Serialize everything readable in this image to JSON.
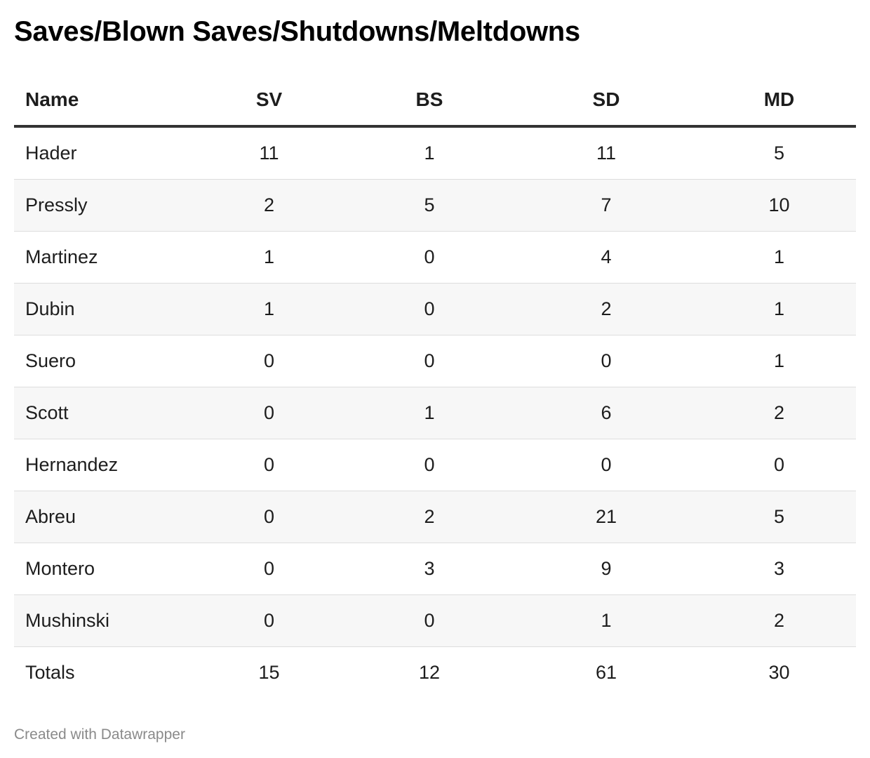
{
  "chart_data": {
    "type": "table",
    "title": "Saves/Blown Saves/Shutdowns/Meltdowns",
    "columns": [
      "Name",
      "SV",
      "BS",
      "SD",
      "MD"
    ],
    "rows": [
      [
        "Hader",
        "11",
        "1",
        "11",
        "5"
      ],
      [
        "Pressly",
        "2",
        "5",
        "7",
        "10"
      ],
      [
        "Martinez",
        "1",
        "0",
        "4",
        "1"
      ],
      [
        "Dubin",
        "1",
        "0",
        "2",
        "1"
      ],
      [
        "Suero",
        "0",
        "0",
        "0",
        "1"
      ],
      [
        "Scott",
        "0",
        "1",
        "6",
        "2"
      ],
      [
        "Hernandez",
        "0",
        "0",
        "0",
        "0"
      ],
      [
        "Abreu",
        "0",
        "2",
        "21",
        "5"
      ],
      [
        "Montero",
        "0",
        "3",
        "9",
        "3"
      ],
      [
        "Mushinski",
        "0",
        "0",
        "1",
        "2"
      ]
    ],
    "totals": [
      "Totals",
      "15",
      "12",
      "61",
      "30"
    ],
    "striped_rows": true
  },
  "footer": "Created with Datawrapper"
}
